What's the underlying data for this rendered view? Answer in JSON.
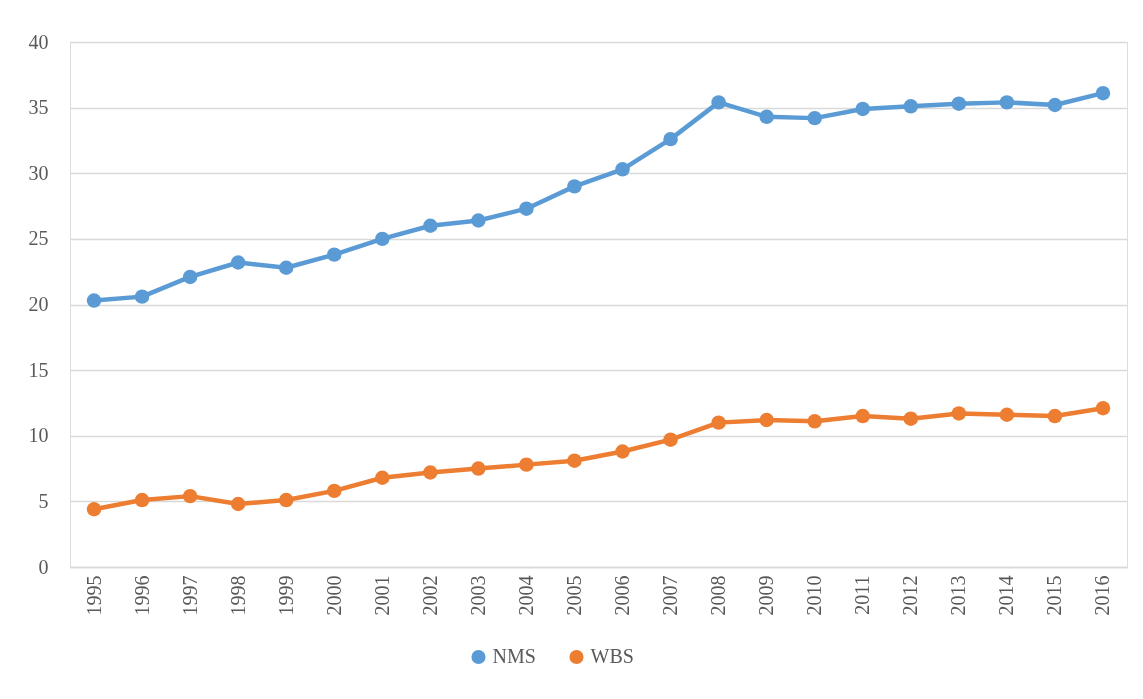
{
  "chart_data": {
    "type": "line",
    "categories": [
      "1995",
      "1996",
      "1997",
      "1998",
      "1999",
      "2000",
      "2001",
      "2002",
      "2003",
      "2004",
      "2005",
      "2006",
      "2007",
      "2008",
      "2009",
      "2010",
      "2011",
      "2012",
      "2013",
      "2014",
      "2015",
      "2016"
    ],
    "series": [
      {
        "name": "NMS",
        "color": "#5b9bd5",
        "values": [
          20.3,
          20.6,
          22.1,
          23.2,
          22.8,
          23.8,
          25.0,
          26.0,
          26.4,
          27.3,
          29.0,
          30.3,
          32.6,
          35.4,
          34.3,
          34.2,
          34.9,
          35.1,
          35.3,
          35.4,
          35.2,
          36.1
        ]
      },
      {
        "name": "WBS",
        "color": "#ed7d31",
        "values": [
          4.4,
          5.1,
          5.4,
          4.8,
          5.1,
          5.8,
          6.8,
          7.2,
          7.5,
          7.8,
          8.1,
          8.8,
          9.7,
          11.0,
          11.2,
          11.1,
          11.5,
          11.3,
          11.7,
          11.6,
          11.5,
          12.1
        ]
      }
    ],
    "ylim": [
      0,
      40
    ],
    "yticks": [
      0,
      5,
      10,
      15,
      20,
      25,
      30,
      35,
      40
    ],
    "grid": "y",
    "legend": "bottom",
    "marker": "circle",
    "line_style": "solid"
  }
}
